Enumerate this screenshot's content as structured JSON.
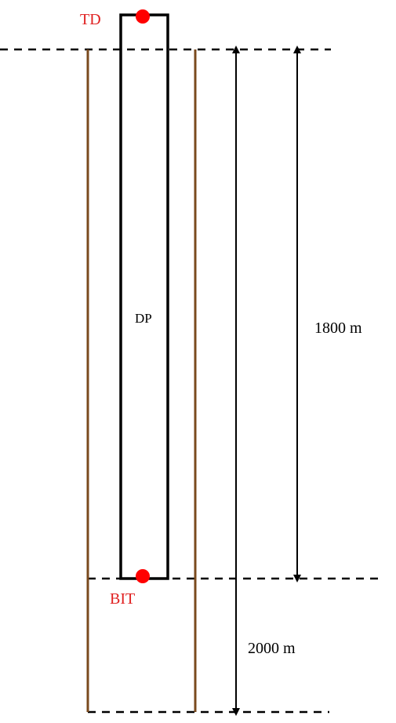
{
  "labels": {
    "top_drive": "TD",
    "drill_pipe": "DP",
    "bit": "BIT",
    "pipe_length": "1800 m",
    "hole_depth": "2000 m"
  },
  "colors": {
    "wellbore": "#7a4a1e",
    "pipe": "#000000",
    "marker": "#ff0000",
    "label_red": "#e02020",
    "reference_line": "#000000"
  }
}
